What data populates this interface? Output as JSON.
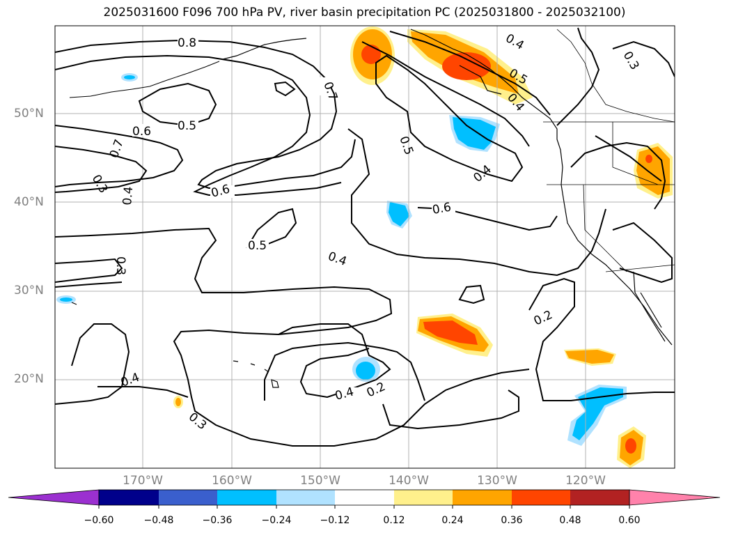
{
  "title": "2025031600 F096 700 hPa PV, river basin precipitation PC (2025031800 - 2025032100)",
  "lat_labels": [
    "50°N",
    "40°N",
    "30°N",
    "20°N"
  ],
  "lon_labels": [
    "170°W",
    "160°W",
    "150°W",
    "140°W",
    "130°W",
    "120°W"
  ],
  "contour_labels": [
    "0.8",
    "0.7",
    "0.6",
    "0.5",
    "0.7",
    "0.3",
    "0.4",
    "0.6",
    "0.5",
    "0.4",
    "0.3",
    "0.5",
    "0.4",
    "0.6",
    "0.4",
    "0.3",
    "0.4",
    "0.2",
    "0.2",
    "0.4",
    "0.3",
    "0.5",
    "0.4",
    "0.3",
    "0.3"
  ],
  "colorbar": {
    "colors": [
      "#9b30d0",
      "#00008b",
      "#3a5fcd",
      "#00bfff",
      "#b0e2ff",
      "#ffffff",
      "#fff08c",
      "#ffa500",
      "#ff4500",
      "#b22222",
      "#ff82ab"
    ],
    "ticks": [
      "−0.60",
      "−0.48",
      "−0.36",
      "−0.24",
      "−0.12",
      "0.12",
      "0.24",
      "0.36",
      "0.48",
      "0.60"
    ]
  }
}
